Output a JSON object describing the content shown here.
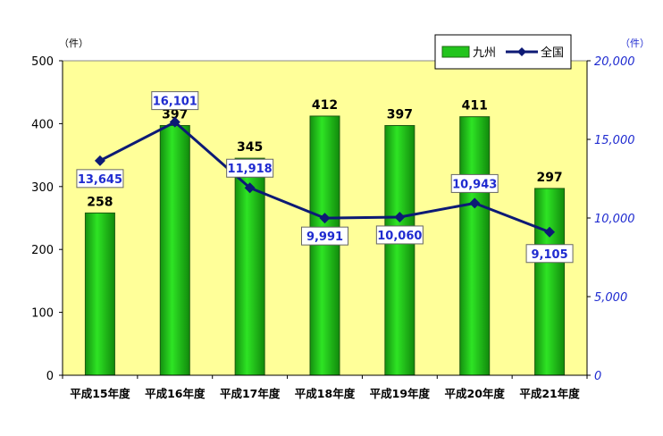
{
  "chart_data": {
    "type": "bar+line",
    "title": "",
    "categories": [
      "平成15年度",
      "平成16年度",
      "平成17年度",
      "平成18年度",
      "平成19年度",
      "平成20年度",
      "平成21年度"
    ],
    "series": [
      {
        "name": "九州",
        "type": "bar",
        "axis": "left",
        "color": "#22c41c",
        "values": [
          258,
          397,
          345,
          412,
          397,
          411,
          297
        ],
        "labels": [
          "258",
          "397",
          "345",
          "412",
          "397",
          "411",
          "297"
        ]
      },
      {
        "name": "全国",
        "type": "line",
        "axis": "right",
        "color": "#0d1a75",
        "values": [
          13645,
          16101,
          11918,
          9991,
          10060,
          10943,
          9105
        ],
        "labels": [
          "13,645",
          "16,101",
          "11,918",
          "9,991",
          "10,060",
          "10,943",
          "9,105"
        ]
      }
    ],
    "left_axis": {
      "unit": "（件）",
      "min": 0,
      "max": 500,
      "ticks": [
        0,
        100,
        200,
        300,
        400,
        500
      ],
      "tick_labels": [
        "0",
        "100",
        "200",
        "300",
        "400",
        "500"
      ]
    },
    "right_axis": {
      "unit": "（件）",
      "min": 0,
      "max": 20000,
      "ticks": [
        0,
        5000,
        10000,
        15000,
        20000
      ],
      "tick_labels": [
        "0",
        "5,000",
        "10,000",
        "15,000",
        "20,000"
      ]
    },
    "legend": {
      "position": "top-right",
      "items": [
        "九州",
        "全国"
      ]
    },
    "plot_background": "#ffff99",
    "grid": false
  }
}
